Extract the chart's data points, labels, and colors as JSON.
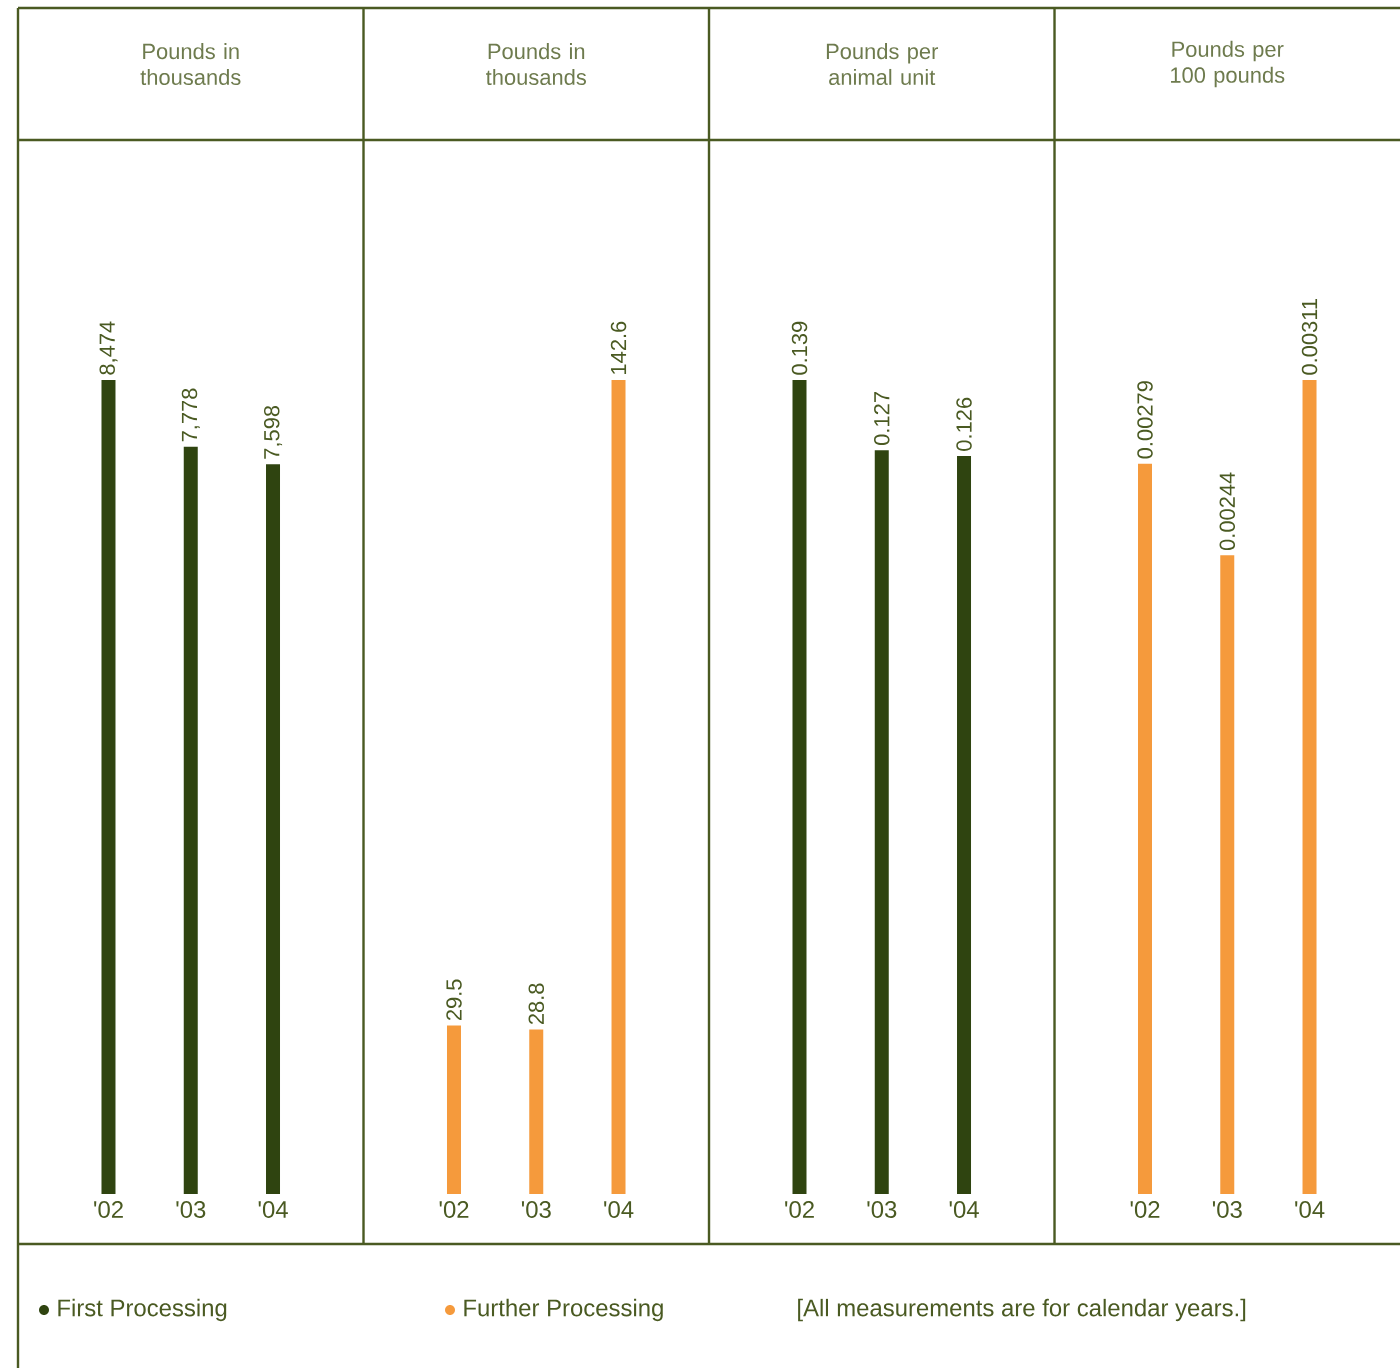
{
  "chart_data": [
    {
      "type": "bar",
      "title": "Pounds in thousands",
      "categories": [
        "'02",
        "'03",
        "'04"
      ],
      "series": [
        {
          "name": "First Processing",
          "color": "#2f4410",
          "values": [
            8474,
            7778,
            7598
          ],
          "value_labels": [
            "8,474",
            "7,778",
            "7,598"
          ]
        }
      ],
      "legend": "bottom",
      "annotations": [
        "[All measurements are for calendar years.]"
      ]
    },
    {
      "type": "bar",
      "title": "Pounds in thousands",
      "categories": [
        "'02",
        "'03",
        "'04"
      ],
      "series": [
        {
          "name": "Further Processing",
          "color": "#f59a3c",
          "values": [
            29.5,
            28.8,
            142.6
          ],
          "value_labels": [
            "29.5",
            "28.8",
            "142.6"
          ]
        }
      ],
      "legend": "bottom"
    },
    {
      "type": "bar",
      "title": "Pounds per animal unit",
      "categories": [
        "'02",
        "'03",
        "'04"
      ],
      "series": [
        {
          "color": "#2f4410",
          "values": [
            0.139,
            0.127,
            0.126
          ],
          "value_labels": [
            "0.139",
            "0.127",
            "0.126"
          ]
        }
      ]
    },
    {
      "type": "bar",
      "title": "Pounds per 100 pounds",
      "categories": [
        "'02",
        "'03",
        "'04"
      ],
      "series": [
        {
          "color": "#f59a3c",
          "values": [
            0.00279,
            0.00244,
            0.00311
          ],
          "value_labels": [
            "0.00279",
            "0.00244",
            "0.00311"
          ]
        }
      ]
    }
  ]
}
